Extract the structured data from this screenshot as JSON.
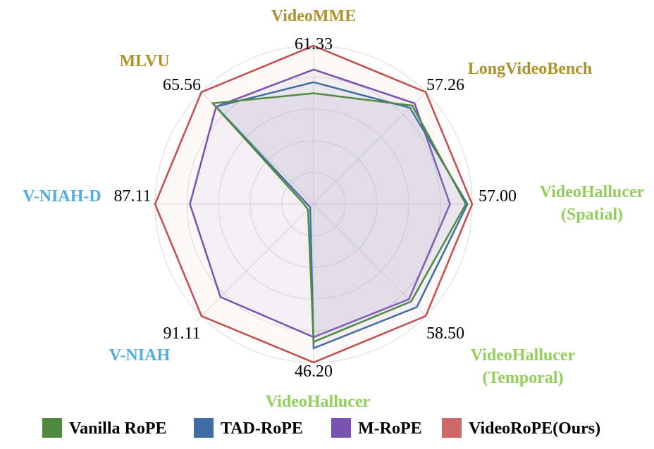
{
  "chart_data": {
    "type": "radar",
    "axes": [
      {
        "label": [
          "VideoMME"
        ],
        "max_label": "61.33",
        "color": "#b0922b"
      },
      {
        "label": [
          "LongVideoBench"
        ],
        "max_label": "57.26",
        "color": "#b0922b"
      },
      {
        "label": [
          "VideoHallucer",
          "(Spatial)"
        ],
        "max_label": "57.00",
        "color": "#92cf5c"
      },
      {
        "label": [
          "VideoHallucer",
          "(Temporal)"
        ],
        "max_label": "58.50",
        "color": "#92cf5c"
      },
      {
        "label": [
          "VideoHallucer"
        ],
        "max_label": "46.20",
        "color": "#92cf5c"
      },
      {
        "label": [
          "V-NIAH"
        ],
        "max_label": "91.11",
        "color": "#4faee3"
      },
      {
        "label": [
          "V-NIAH-D"
        ],
        "max_label": "87.11",
        "color": "#4faee3"
      },
      {
        "label": [
          "MLVU"
        ],
        "max_label": "65.56",
        "color": "#b0922b"
      }
    ],
    "series": [
      {
        "name": "Vanilla RoPE",
        "color": "#4e8b3f",
        "values": [
          0.7,
          0.88,
          0.96,
          0.87,
          0.87,
          0.05,
          0.06,
          0.9
        ]
      },
      {
        "name": "TAD-RoPE",
        "color": "#3f6ea3",
        "values": [
          0.77,
          0.86,
          0.97,
          0.92,
          0.91,
          0.03,
          0.04,
          0.87
        ]
      },
      {
        "name": "M-RoPE",
        "color": "#7a52b2",
        "values": [
          0.85,
          0.9,
          0.86,
          0.85,
          0.84,
          0.83,
          0.78,
          0.87
        ]
      },
      {
        "name": "VideoRoPE(Ours)",
        "color": "#c44d4b",
        "values": [
          1.0,
          1.0,
          1.0,
          1.0,
          1.0,
          1.0,
          1.0,
          1.0
        ]
      }
    ],
    "rlim": [
      0,
      1
    ],
    "grid": true,
    "legend": "bottom"
  }
}
